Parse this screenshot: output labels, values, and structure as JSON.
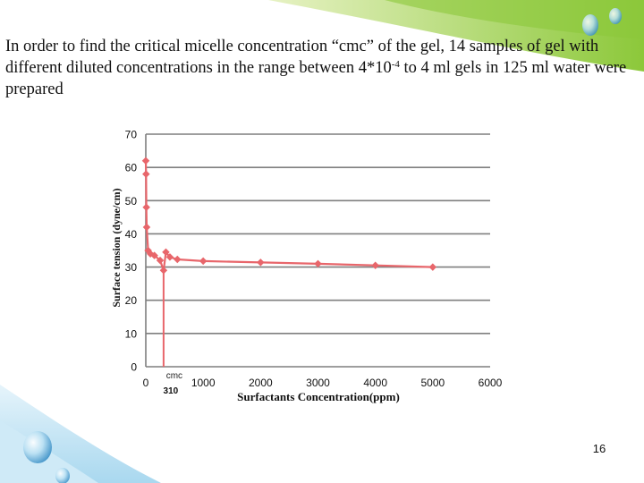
{
  "slide": {
    "text_before": "In order to find the critical micelle concentration “cmc” of the gel, 14 samples of gel with different diluted concentrations in the range between 4*10",
    "text_sup": "-4",
    "text_after": " to 4 ml gels in 125 ml water were prepared",
    "page_number": "16"
  },
  "chart_data": {
    "type": "line",
    "xlabel": "Surfactants Concentration(ppm)",
    "ylabel": "Surface tension (dyne/cm)",
    "xlim": [
      0,
      6000
    ],
    "ylim": [
      0,
      70
    ],
    "x_ticks": [
      "0",
      "1000",
      "2000",
      "3000",
      "4000",
      "5000",
      "6000"
    ],
    "y_ticks": [
      "0",
      "10",
      "20",
      "30",
      "40",
      "50",
      "60",
      "70"
    ],
    "grid": "horizontal",
    "series": [
      {
        "color": "#e8666b",
        "x": [
          0,
          5,
          10,
          15,
          40,
          80,
          150,
          250,
          310,
          350,
          420,
          550,
          1000,
          2000,
          3000,
          4000,
          5000
        ],
        "y": [
          62,
          58,
          48,
          42,
          35,
          34,
          33.5,
          32,
          29,
          34.5,
          33,
          32.3,
          31.8,
          31.4,
          31,
          30.5,
          30
        ]
      }
    ],
    "cmc_line": {
      "x": 310,
      "label": "cmc",
      "value_label": "310",
      "color": "#e8666b"
    }
  }
}
